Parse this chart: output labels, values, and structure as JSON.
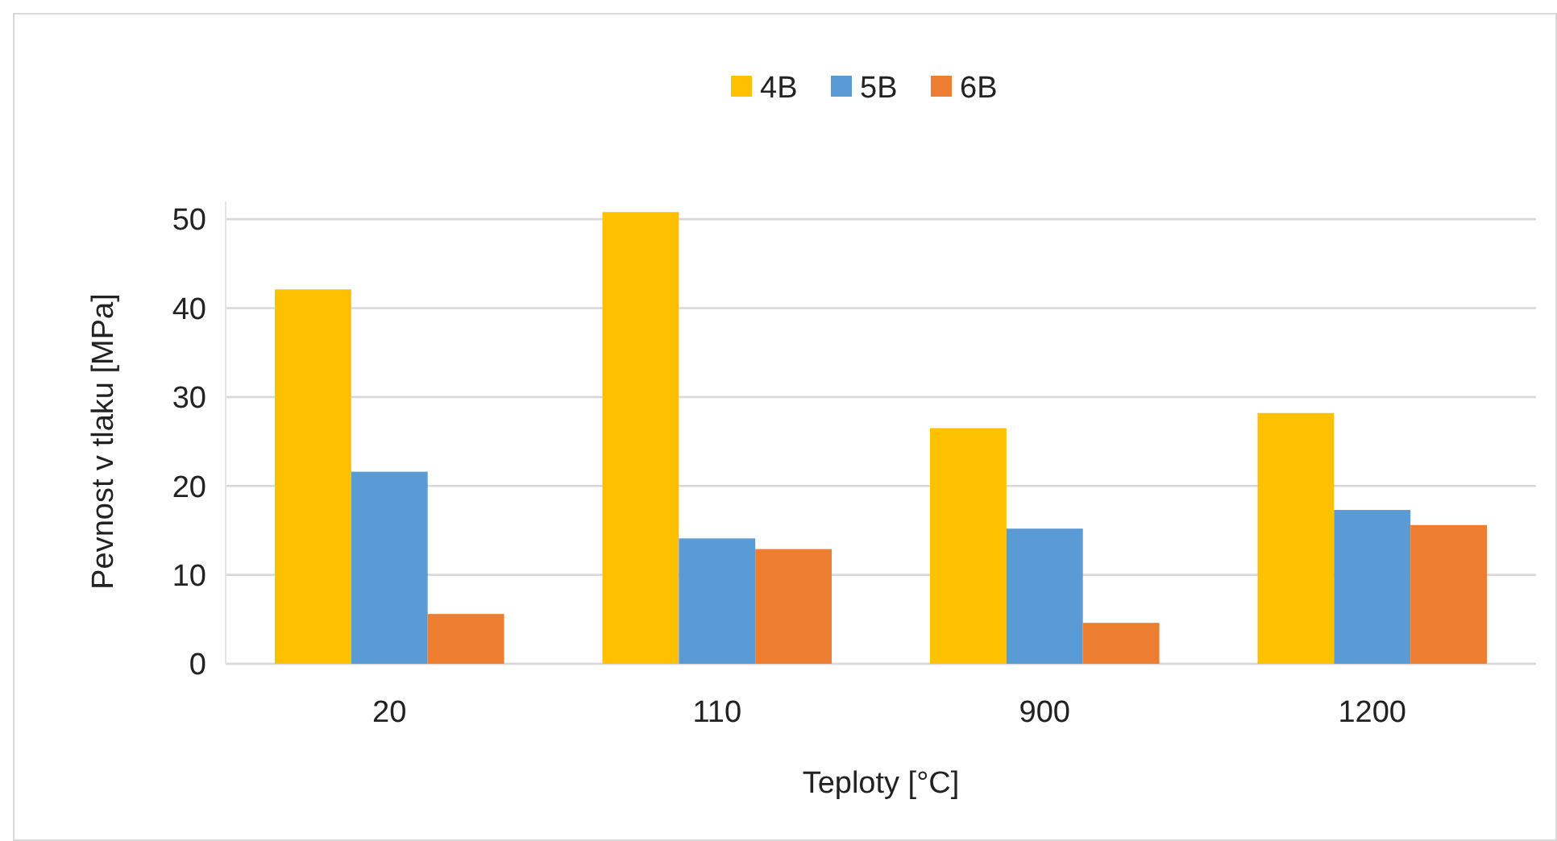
{
  "chart_data": {
    "type": "bar",
    "xlabel": "Teploty [°C]",
    "ylabel": "Pevnost v tlaku [MPa]",
    "categories": [
      "20",
      "110",
      "900",
      "1200"
    ],
    "series": [
      {
        "name": "4B",
        "color": "#ffc000",
        "values": [
          42.1,
          50.8,
          26.5,
          28.2
        ]
      },
      {
        "name": "5B",
        "color": "#5b9bd5",
        "values": [
          21.6,
          14.1,
          15.2,
          17.3
        ]
      },
      {
        "name": "6B",
        "color": "#ed7d31",
        "values": [
          5.6,
          12.9,
          4.6,
          15.6
        ]
      }
    ],
    "ylim": [
      0,
      52
    ],
    "yticks": [
      0,
      10,
      20,
      30,
      40,
      50
    ],
    "grid": "y",
    "legend": "top"
  }
}
